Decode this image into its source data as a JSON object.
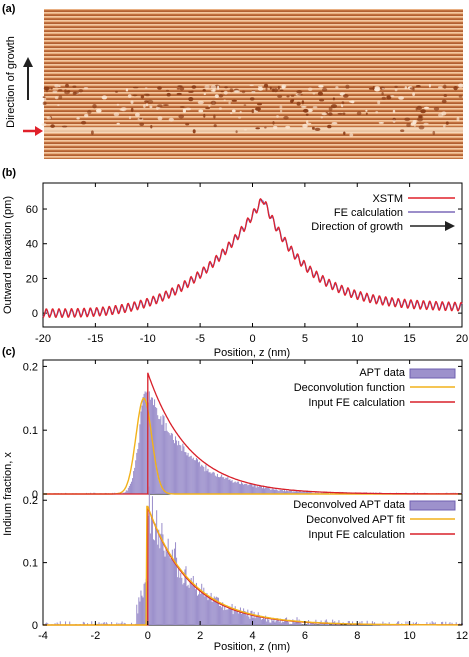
{
  "panels": {
    "a": {
      "label": "(a)",
      "side_label": "Direction of growth"
    },
    "b": {
      "label": "(b)"
    },
    "c": {
      "label": "(c)"
    }
  },
  "colors": {
    "xstm": "#e0202a",
    "fe": "#7b68b8",
    "apt_bar": "#9d91cc",
    "apt_bar_edge": "#6f60b0",
    "deconv": "#f2b21b",
    "input_fe": "#d8202a",
    "stm_light": "#f2c29a",
    "stm_dark": "#8a3a14",
    "arrow_red": "#e0202a"
  },
  "chart_data": [
    {
      "panel": "b",
      "type": "line",
      "xlabel": "Position, z (nm)",
      "ylabel": "Outward relaxation (pm)",
      "xlim": [
        -20,
        20
      ],
      "ylim": [
        -8,
        75
      ],
      "xticks": [
        -20,
        -15,
        -10,
        -5,
        0,
        5,
        10,
        15,
        20
      ],
      "yticks": [
        0,
        20,
        40,
        60
      ],
      "legend_position": "top-right",
      "series": [
        {
          "name": "XSTM",
          "color": "#e0202a"
        },
        {
          "name": "FE calculation",
          "color": "#7b68b8"
        },
        {
          "name": "Direction of growth",
          "marker": "arrow"
        }
      ],
      "peak": {
        "x": 1,
        "y": 66
      },
      "baseline_left": {
        "x": -20,
        "y": 0
      },
      "baseline_right": {
        "x": 20,
        "y": 3
      },
      "oscillation_amplitude": 2.5
    },
    {
      "panel": "c-top",
      "type": "bar",
      "xlim": [
        -4,
        12
      ],
      "ylim": [
        0,
        0.21
      ],
      "yticks": [
        0,
        0.1,
        0.2
      ],
      "legend_position": "top-right",
      "series": [
        {
          "name": "APT data",
          "kind": "histogram"
        },
        {
          "name": "Deconvolution function",
          "kind": "line",
          "peak": {
            "x": -0.15,
            "y": 0.15
          }
        },
        {
          "name": "Input FE calculation",
          "kind": "line",
          "peak": {
            "x": 0,
            "y": 0.19
          }
        }
      ]
    },
    {
      "panel": "c-bottom",
      "type": "bar",
      "xlabel": "Position, z (nm)",
      "ylabel": "Indium fraction, x",
      "xlim": [
        -4,
        12
      ],
      "ylim": [
        0,
        0.21
      ],
      "xticks": [
        -4,
        -2,
        0,
        2,
        4,
        6,
        8,
        10,
        12
      ],
      "yticks": [
        0,
        0.1,
        0.2
      ],
      "legend_position": "top-right",
      "series": [
        {
          "name": "Deconvolved APT data",
          "kind": "histogram"
        },
        {
          "name": "Deconvolved APT fit",
          "kind": "line",
          "peak": {
            "x": 0,
            "y": 0.19
          }
        },
        {
          "name": "Input FE calculation",
          "kind": "line",
          "peak": {
            "x": 0,
            "y": 0.19
          }
        }
      ]
    }
  ]
}
